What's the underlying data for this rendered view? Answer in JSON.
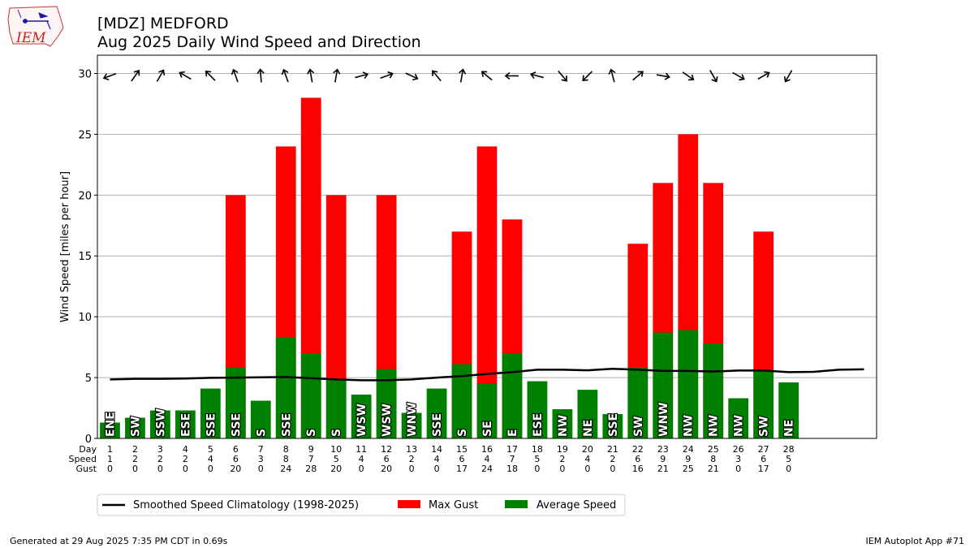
{
  "header": {
    "title": "[MDZ] MEDFORD",
    "subtitle": "Aug 2025 Daily Wind Speed and Direction",
    "logo_text": "IEM"
  },
  "footer": {
    "generated": "Generated at 29 Aug 2025 7:35 PM CDT in 0.69s",
    "app": "IEM Autoplot App #71"
  },
  "row_labels": {
    "day": "Day",
    "speed": "Speed",
    "gust": "Gust"
  },
  "colors": {
    "gust": "#ff0000",
    "average": "#008000",
    "climatology": "#000000",
    "grid": "#b0b0b0"
  },
  "chart_data": {
    "type": "bar",
    "title": "[MDZ] MEDFORD",
    "subtitle": "Aug 2025 Daily Wind Speed and Direction",
    "ylabel": "Wind Speed [miles per hour]",
    "ylim": [
      0,
      31.5
    ],
    "yticks": [
      0,
      5,
      10,
      15,
      20,
      25,
      30
    ],
    "xlim": [
      0.5,
      31.5
    ],
    "grid": "y",
    "legend_position": "bottom",
    "days": [
      1,
      2,
      3,
      4,
      5,
      6,
      7,
      8,
      9,
      10,
      11,
      12,
      13,
      14,
      15,
      16,
      17,
      18,
      19,
      20,
      21,
      22,
      23,
      24,
      25,
      26,
      27,
      28
    ],
    "day_labels": [
      "1",
      "2",
      "3",
      "4",
      "5",
      "6",
      "7",
      "8",
      "9",
      "10",
      "11",
      "12",
      "13",
      "14",
      "15",
      "16",
      "17",
      "18",
      "19",
      "20",
      "21",
      "22",
      "23",
      "24",
      "25",
      "26",
      "27",
      "28"
    ],
    "avg_speed": [
      1.3,
      1.7,
      2.3,
      2.3,
      4.1,
      5.8,
      3.1,
      8.3,
      7.0,
      4.9,
      3.6,
      5.7,
      2.1,
      4.1,
      6.1,
      4.5,
      7.0,
      4.7,
      2.4,
      4.0,
      2.0,
      5.8,
      8.7,
      8.9,
      7.8,
      3.3,
      5.5,
      4.6
    ],
    "speed_labels": [
      "1",
      "2",
      "2",
      "2",
      "4",
      "6",
      "3",
      "8",
      "7",
      "5",
      "4",
      "6",
      "2",
      "4",
      "6",
      "4",
      "7",
      "5",
      "2",
      "4",
      "2",
      "6",
      "9",
      "9",
      "8",
      "3",
      "6",
      "5"
    ],
    "max_gust": [
      0,
      0,
      0,
      0,
      0,
      20,
      0,
      24,
      28,
      20,
      0,
      20,
      0,
      0,
      17,
      24,
      18,
      0,
      0,
      0,
      0,
      16,
      21,
      25,
      21,
      0,
      17,
      0
    ],
    "gust_labels": [
      "0",
      "0",
      "0",
      "0",
      "0",
      "20",
      "0",
      "24",
      "28",
      "20",
      "0",
      "20",
      "0",
      "0",
      "17",
      "24",
      "18",
      "0",
      "0",
      "0",
      "0",
      "16",
      "21",
      "25",
      "21",
      "0",
      "17",
      "0"
    ],
    "direction_labels": [
      "ENE",
      "SW",
      "SSW",
      "ESE",
      "SSE",
      "SSE",
      "S",
      "SSE",
      "S",
      "S",
      "WSW",
      "WSW",
      "WNW",
      "SSE",
      "S",
      "SE",
      "E",
      "ESE",
      "NW",
      "NE",
      "SSE",
      "SW",
      "WNW",
      "NW",
      "NW",
      "NW",
      "SW",
      "NE"
    ],
    "arrow_angles": [
      250,
      35,
      30,
      300,
      315,
      340,
      355,
      340,
      350,
      10,
      75,
      70,
      115,
      320,
      10,
      310,
      270,
      285,
      140,
      225,
      345,
      50,
      100,
      125,
      150,
      120,
      60,
      210
    ],
    "climatology": {
      "name": "Smoothed Speed Climatology (1998-2025)",
      "x": [
        1,
        2,
        3,
        4,
        5,
        6,
        7,
        8,
        9,
        10,
        11,
        12,
        13,
        14,
        15,
        16,
        17,
        18,
        19,
        20,
        21,
        22,
        23,
        24,
        25,
        26,
        27,
        28,
        29,
        30,
        31
      ],
      "y": [
        4.85,
        4.9,
        4.9,
        4.92,
        4.98,
        5.0,
        5.02,
        5.05,
        4.95,
        4.85,
        4.78,
        4.78,
        4.85,
        5.0,
        5.12,
        5.3,
        5.45,
        5.65,
        5.65,
        5.6,
        5.72,
        5.65,
        5.55,
        5.55,
        5.5,
        5.58,
        5.58,
        5.45,
        5.47,
        5.65,
        5.68
      ]
    },
    "legend": [
      "Smoothed Speed Climatology (1998-2025)",
      "Max Gust",
      "Average Speed"
    ]
  }
}
